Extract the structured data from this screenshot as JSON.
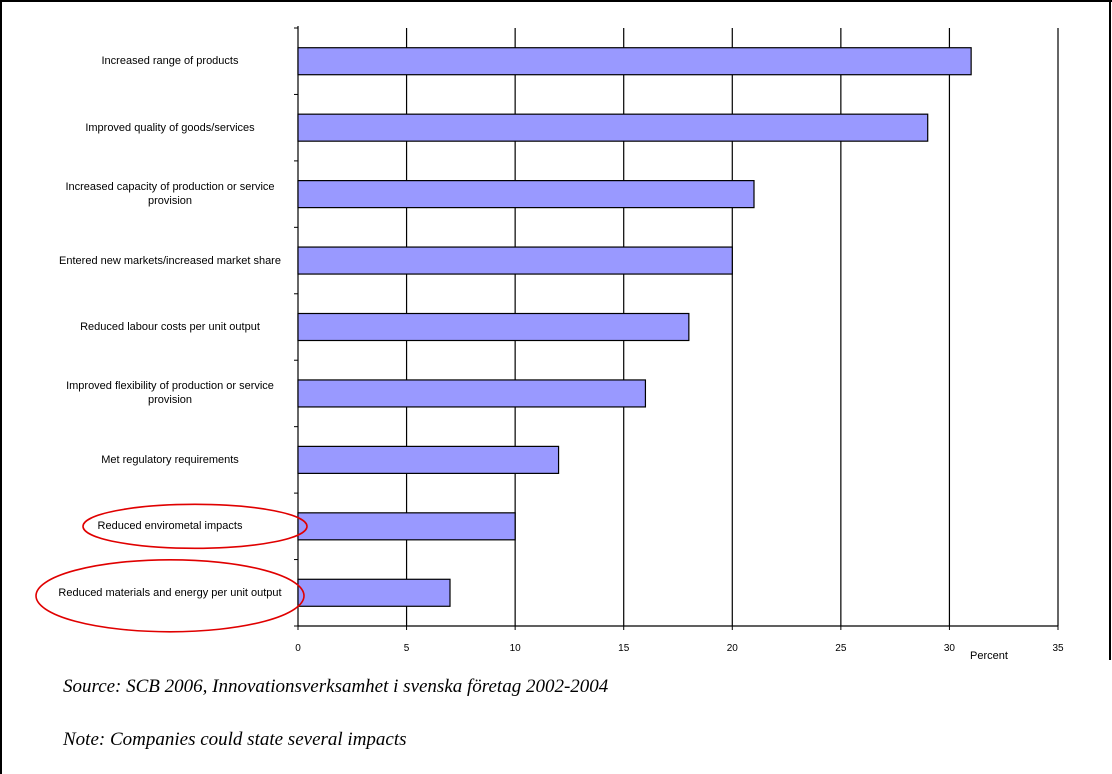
{
  "chart_data": {
    "type": "bar",
    "orientation": "horizontal",
    "categories": [
      "Increased range of products",
      "Improved quality of goods/services",
      "Increased capacity of production or service provision",
      "Entered new markets/increased market share",
      "Reduced labour costs per unit output",
      "Improved flexibility of production or service provision",
      "Met regulatory requirements",
      "Reduced envirometal impacts",
      "Reduced materials and energy per unit output"
    ],
    "values": [
      31,
      29,
      21,
      20,
      18,
      16,
      12,
      10,
      7
    ],
    "xlabel": "Percent",
    "xlim": [
      0,
      35
    ],
    "xticks": [
      0,
      5,
      10,
      15,
      20,
      25,
      30,
      35
    ],
    "grid": "vertical",
    "bar_color": "#9999ff",
    "highlight_color": "#e00000",
    "highlighted": [
      "Reduced envirometal impacts",
      "Reduced materials and energy per unit output"
    ]
  },
  "notes": {
    "source": "Source: SCB 2006, Innovationsverksamhet i svenska företag 2002-2004",
    "note": "Note: Companies could state several impacts"
  }
}
